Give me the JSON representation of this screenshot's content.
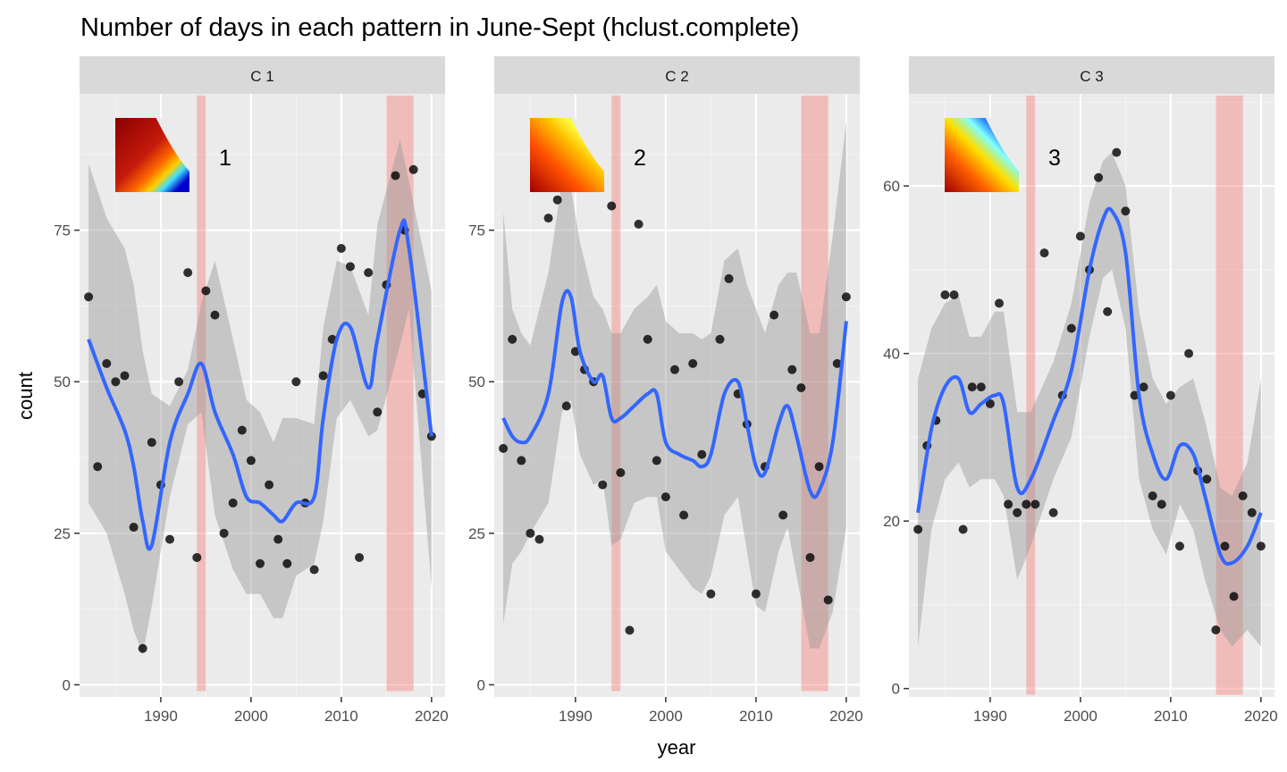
{
  "chart_data": {
    "type": "scatter",
    "title": "Number of days in each pattern in June-Sept (hclust.complete)",
    "xlabel": "year",
    "ylabel": "count",
    "xlim": [
      1981,
      2021.5
    ],
    "x_ticks": [
      1990,
      2000,
      2010,
      2020
    ],
    "smooth_color": "#3366FF",
    "ribbon_color": "#999999",
    "highlight_color": "#F8766D",
    "point_color": "#000000",
    "highlight_periods": [
      [
        1994,
        1995
      ],
      [
        2015,
        2018
      ]
    ],
    "panels": [
      {
        "strip": "C 1",
        "inset_label": "1",
        "ylim": [
          -2,
          97.5
        ],
        "y_ticks": [
          0,
          25,
          50,
          75
        ],
        "x": [
          1982,
          1983,
          1984,
          1985,
          1986,
          1987,
          1988,
          1989,
          1990,
          1991,
          1992,
          1993,
          1994,
          1995,
          1996,
          1997,
          1998,
          1999,
          2000,
          2001,
          2002,
          2003,
          2004,
          2005,
          2006,
          2007,
          2008,
          2009,
          2010,
          2011,
          2012,
          2013,
          2014,
          2015,
          2016,
          2017,
          2018,
          2019,
          2020
        ],
        "y": [
          64,
          36,
          53,
          50,
          51,
          26,
          6,
          40,
          33,
          24,
          50,
          68,
          21,
          65,
          61,
          25,
          30,
          42,
          37,
          20,
          33,
          24,
          20,
          50,
          30,
          19,
          51,
          57,
          72,
          69,
          21,
          68,
          45,
          66,
          84,
          75,
          85,
          48,
          41
        ],
        "smooth": [
          57,
          49,
          42,
          36,
          27,
          23,
          40,
          48,
          53,
          45,
          38,
          31,
          30,
          28,
          27,
          30,
          31,
          44,
          57,
          59,
          49,
          57,
          75,
          72,
          41
        ],
        "smooth_x": [
          1982,
          1984,
          1986,
          1987,
          1988,
          1989,
          1991,
          1993,
          1994.5,
          1996,
          1998,
          1999.5,
          2001,
          2002.5,
          2003.5,
          2005,
          2007,
          2008,
          2009.5,
          2011,
          2013,
          2014,
          2016.5,
          2017.5,
          2020
        ],
        "ribbon_upper": [
          86,
          77,
          72,
          66,
          55,
          48,
          46,
          52,
          63,
          70,
          57,
          47,
          45,
          40,
          44,
          44,
          43,
          59,
          70,
          69,
          61,
          76,
          90,
          83,
          65
        ],
        "ribbon_lower": [
          30,
          25,
          15,
          9,
          5,
          13,
          31,
          43,
          45,
          28,
          19,
          15,
          15,
          11,
          11,
          18,
          20,
          27,
          44,
          47,
          41,
          42,
          56,
          62,
          16
        ]
      },
      {
        "strip": "C 2",
        "inset_label": "2",
        "ylim": [
          -2,
          97.5
        ],
        "y_ticks": [
          0,
          25,
          50,
          75
        ],
        "x": [
          1982,
          1983,
          1984,
          1985,
          1986,
          1987,
          1988,
          1989,
          1990,
          1991,
          1992,
          1993,
          1994,
          1995,
          1996,
          1997,
          1998,
          1999,
          2000,
          2001,
          2002,
          2003,
          2004,
          2005,
          2006,
          2007,
          2008,
          2009,
          2010,
          2011,
          2012,
          2013,
          2014,
          2015,
          2016,
          2017,
          2018,
          2019,
          2020
        ],
        "y": [
          39,
          57,
          37,
          25,
          24,
          77,
          80,
          46,
          55,
          52,
          50,
          33,
          79,
          35,
          9,
          76,
          57,
          37,
          31,
          52,
          28,
          53,
          38,
          15,
          57,
          67,
          48,
          43,
          15,
          36,
          61,
          28,
          52,
          49,
          21,
          36,
          14,
          53,
          64
        ],
        "smooth": [
          44,
          41,
          40,
          41,
          48,
          63,
          64,
          55,
          50,
          51,
          44,
          44,
          46,
          48,
          48,
          40,
          38,
          37,
          36,
          38,
          48,
          50,
          43,
          36,
          35,
          43,
          46,
          41,
          32,
          32,
          40,
          60
        ],
        "smooth_x": [
          1982,
          1983,
          1984,
          1985,
          1987,
          1988.5,
          1989.5,
          1990.5,
          1992,
          1993,
          1994,
          1995,
          1996.5,
          1998,
          1999,
          2000,
          2001.5,
          2003,
          2004,
          2005,
          2006.5,
          2008,
          2009,
          2010,
          2011,
          2012.5,
          2013.5,
          2014.5,
          2016,
          2017,
          2018.5,
          2020
        ],
        "ribbon_upper": [
          78,
          62,
          58,
          56,
          68,
          83,
          82,
          73,
          64,
          62,
          58,
          58,
          62,
          64,
          66,
          60,
          58,
          58,
          57,
          58,
          70,
          72,
          66,
          62,
          58,
          66,
          68,
          68,
          58,
          58,
          74,
          93
        ],
        "ribbon_lower": [
          10,
          20,
          22,
          25,
          30,
          45,
          47,
          38,
          33,
          34,
          23,
          24,
          30,
          31,
          31,
          22,
          19,
          16,
          15,
          18,
          28,
          31,
          22,
          13,
          12,
          22,
          26,
          18,
          6,
          6,
          12,
          26
        ]
      },
      {
        "strip": "C 3",
        "inset_label": "3",
        "ylim": [
          -1,
          71
        ],
        "y_ticks": [
          0,
          20,
          40,
          60
        ],
        "x": [
          1982,
          1983,
          1984,
          1985,
          1986,
          1987,
          1988,
          1989,
          1990,
          1991,
          1992,
          1993,
          1994,
          1995,
          1996,
          1997,
          1998,
          1999,
          2000,
          2001,
          2002,
          2003,
          2004,
          2005,
          2006,
          2007,
          2008,
          2009,
          2010,
          2011,
          2012,
          2013,
          2014,
          2015,
          2016,
          2017,
          2018,
          2019,
          2020
        ],
        "y": [
          19,
          29,
          32,
          47,
          47,
          19,
          36,
          36,
          34,
          46,
          22,
          21,
          22,
          22,
          52,
          21,
          35,
          43,
          54,
          50,
          61,
          45,
          64,
          57,
          35,
          36,
          23,
          22,
          35,
          17,
          40,
          26,
          25,
          7,
          17,
          11,
          23,
          21,
          17
        ],
        "smooth": [
          21,
          31,
          36,
          37,
          33,
          34,
          35,
          34,
          24,
          25,
          32,
          38,
          50,
          56,
          57,
          52,
          35,
          28,
          25,
          29,
          28,
          23,
          16,
          15,
          17,
          21
        ],
        "smooth_x": [
          1982,
          1983.5,
          1985,
          1986.5,
          1987.7,
          1989,
          1990.5,
          1991.5,
          1993,
          1994.5,
          1997,
          1999,
          2001,
          2002.5,
          2003.5,
          2005,
          2006.5,
          2008,
          2009.5,
          2011,
          2012.5,
          2013.8,
          2015.5,
          2016.8,
          2018.5,
          2020
        ],
        "ribbon_upper": [
          37,
          43,
          46,
          47,
          42,
          42,
          45,
          45,
          33,
          33,
          39,
          46,
          58,
          63,
          64,
          60,
          45,
          37,
          34,
          36,
          37,
          32,
          24,
          23,
          27,
          37
        ],
        "ribbon_lower": [
          5,
          19,
          25,
          27,
          24,
          25,
          25,
          23,
          13,
          17,
          25,
          30,
          42,
          49,
          50,
          43,
          25,
          19,
          16,
          22,
          19,
          13,
          7,
          5,
          7,
          5
        ]
      }
    ]
  }
}
